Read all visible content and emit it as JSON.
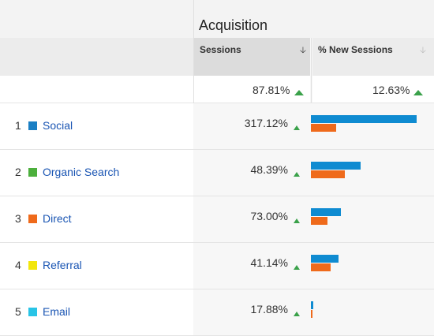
{
  "header": {
    "title": "Acquisition",
    "columns": [
      {
        "label": "Sessions",
        "sort_icon": "arrow-down-icon"
      },
      {
        "label": "% New Sessions",
        "sort_icon": "arrow-down-icon"
      }
    ]
  },
  "totals": {
    "sessions": "87.81%",
    "new_sessions": "12.63%"
  },
  "colors": {
    "blue": "#0f8bd1",
    "orange": "#ef6a1b",
    "up": "#3aa14a",
    "link": "#1a55b3"
  },
  "rows": [
    {
      "num": "1",
      "label": "Social",
      "swatch": "#1a7fc4",
      "pct": "317.12%",
      "blue_frac": 1.0,
      "orange_frac": 0.24
    },
    {
      "num": "2",
      "label": "Organic Search",
      "swatch": "#4caf3c",
      "pct": "48.39%",
      "blue_frac": 0.47,
      "orange_frac": 0.32
    },
    {
      "num": "3",
      "label": "Direct",
      "swatch": "#ef6a1b",
      "pct": "73.00%",
      "blue_frac": 0.28,
      "orange_frac": 0.16
    },
    {
      "num": "4",
      "label": "Referral",
      "swatch": "#f2e60c",
      "pct": "41.14%",
      "blue_frac": 0.26,
      "orange_frac": 0.19
    },
    {
      "num": "5",
      "label": "Email",
      "swatch": "#29c4e6",
      "pct": "17.88%",
      "blue_frac": 0.02,
      "orange_frac": 0.01
    }
  ]
}
